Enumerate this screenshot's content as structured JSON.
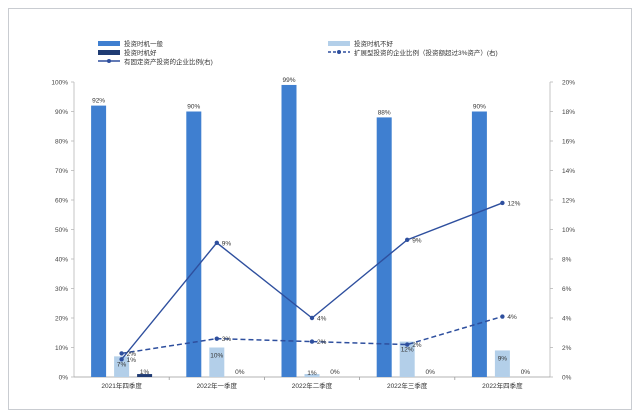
{
  "chart_data": {
    "type": "bar",
    "categories": [
      "2021年四季度",
      "2022年一季度",
      "2022年二季度",
      "2022年三季度",
      "2022年四季度"
    ],
    "series": [
      {
        "name": "投资时机一般",
        "axis": "left",
        "kind": "bar",
        "color": "#3f7fd0",
        "values": [
          92,
          90,
          99,
          88,
          90
        ],
        "labels": [
          "92%",
          "90%",
          "99%",
          "88%",
          "90%"
        ]
      },
      {
        "name": "投资时机不好",
        "axis": "left",
        "kind": "bar",
        "color": "#b3cfe9",
        "values": [
          7,
          10,
          1,
          12,
          9
        ],
        "labels": [
          "7%",
          "10%",
          "1%",
          "12%",
          "9%"
        ]
      },
      {
        "name": "投资时机好",
        "axis": "left",
        "kind": "bar",
        "color": "#1f3b73",
        "values": [
          1,
          0,
          0,
          0,
          0
        ],
        "labels": [
          "1%",
          "0%",
          "0%",
          "0%",
          "0%"
        ]
      },
      {
        "name": "有固定资产投资的企业比例(右)",
        "axis": "right",
        "kind": "line",
        "style": "solid",
        "color": "#2e4f9e",
        "values": [
          1.2,
          9.1,
          4.0,
          9.3,
          11.8
        ],
        "labels": [
          "1%",
          "9%",
          "4%",
          "9%",
          "12%"
        ]
      },
      {
        "name": "扩展型投资的企业比例（投资额超过3%资产）(右)",
        "axis": "right",
        "kind": "line",
        "style": "dashed",
        "color": "#2e4f9e",
        "values": [
          1.6,
          2.6,
          2.4,
          2.2,
          4.1
        ],
        "labels": [
          "2%",
          "3%",
          "2%",
          "2%",
          "4%"
        ]
      }
    ],
    "ylim_left": [
      0,
      100
    ],
    "ylim_right": [
      0,
      20
    ],
    "left_ticks": [
      "0%",
      "10%",
      "20%",
      "30%",
      "40%",
      "50%",
      "60%",
      "70%",
      "80%",
      "90%",
      "100%"
    ],
    "right_ticks": [
      "0%",
      "2%",
      "4%",
      "6%",
      "8%",
      "10%",
      "12%",
      "14%",
      "16%",
      "18%",
      "20%"
    ],
    "grid": false,
    "legend_position": "top"
  }
}
